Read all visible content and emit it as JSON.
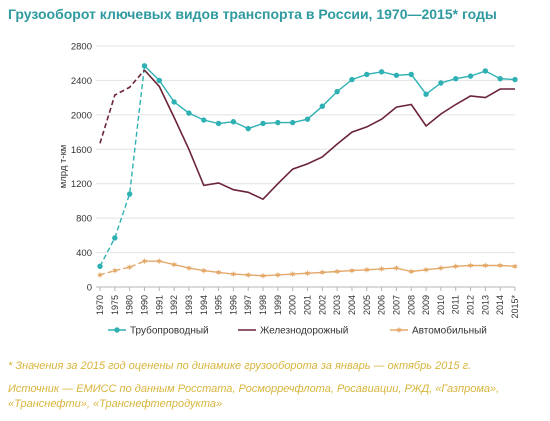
{
  "title": "Грузооборот ключевых видов транспорта в России, 1970—2015* годы",
  "footnote": "* Значения за 2015 год оценены по динамике грузооборота за январь — октябрь 2015 г.",
  "source": "Источник — ЕМИСС по данным Росстата, Росморречфлота, Росавиации, РЖД, «Газпрома», «Транснефти», «Транснефтепродукта»",
  "chart_data": {
    "type": "line",
    "ylabel": "млрд т-км",
    "ylim": [
      0,
      2800
    ],
    "yticks": [
      0,
      400,
      800,
      1200,
      1600,
      2000,
      2400,
      2800
    ],
    "xticks": [
      "1970",
      "1975",
      "1980",
      "1990",
      "1991",
      "1992",
      "1993",
      "1994",
      "1995",
      "1996",
      "1997",
      "1998",
      "1999",
      "2000",
      "2001",
      "2002",
      "2003",
      "2004",
      "2005",
      "2006",
      "2007",
      "2008",
      "2009",
      "2010",
      "2011",
      "2012",
      "2013",
      "2014",
      "2015*"
    ],
    "grid": "horizontal",
    "legend_position": "bottom",
    "dashed_segment": "1970–1990 dashed",
    "series": [
      {
        "name": "Трубопроводный",
        "color": "#2fb1b4",
        "marker": "circle",
        "values": [
          240,
          570,
          1080,
          2570,
          2400,
          2150,
          2020,
          1940,
          1900,
          1920,
          1840,
          1900,
          1910,
          1910,
          1950,
          2100,
          2270,
          2410,
          2470,
          2500,
          2460,
          2470,
          2240,
          2370,
          2420,
          2450,
          2510,
          2420,
          2410
        ]
      },
      {
        "name": "Железнодорожный",
        "color": "#6b2438",
        "marker": "none",
        "values": [
          1670,
          2230,
          2320,
          2520,
          2330,
          1970,
          1600,
          1180,
          1210,
          1130,
          1100,
          1020,
          1200,
          1370,
          1430,
          1510,
          1660,
          1800,
          1860,
          1950,
          2090,
          2120,
          1870,
          2010,
          2120,
          2220,
          2200,
          2300,
          2300
        ]
      },
      {
        "name": "Автомобильный",
        "color": "#e3a96a",
        "marker": "star",
        "values": [
          140,
          190,
          230,
          300,
          300,
          260,
          220,
          190,
          170,
          150,
          140,
          130,
          140,
          150,
          160,
          170,
          180,
          190,
          200,
          210,
          220,
          180,
          200,
          220,
          240,
          250,
          250,
          250,
          240
        ]
      }
    ]
  }
}
